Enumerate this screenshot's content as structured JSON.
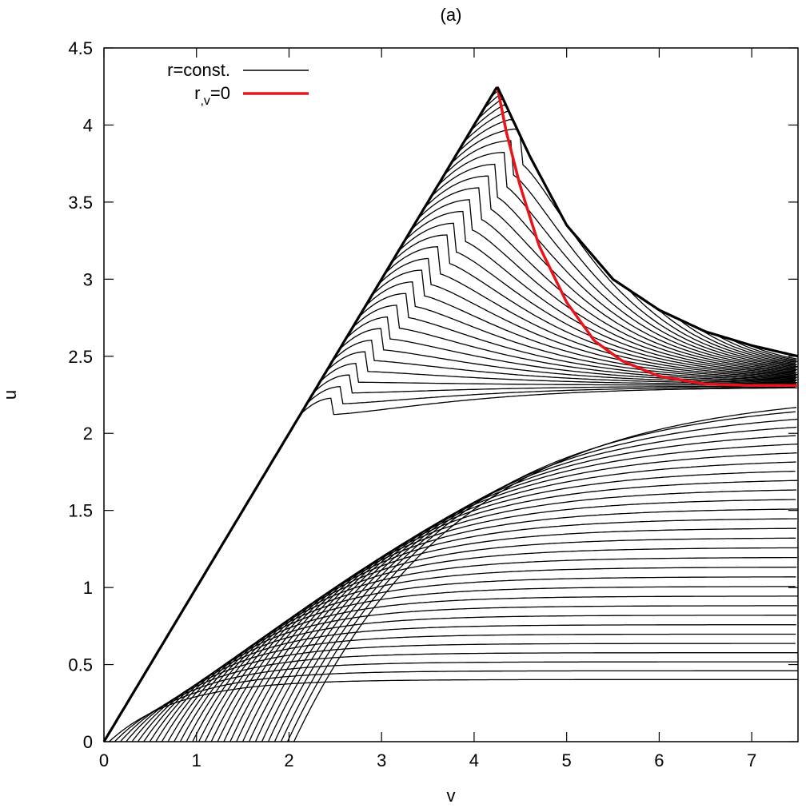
{
  "chart_data": {
    "type": "line",
    "title": "(a)",
    "xlabel": "v",
    "ylabel": "u",
    "xlim": [
      0,
      7.5
    ],
    "ylim": [
      0,
      4.5
    ],
    "x_ticks": [
      "0",
      "1",
      "2",
      "3",
      "4",
      "5",
      "6",
      "7"
    ],
    "y_ticks": [
      "0",
      "0.5",
      "1",
      "1.5",
      "2",
      "2.5",
      "3",
      "3.5",
      "4",
      "4.5"
    ],
    "grid": false,
    "legend_position": "top-left",
    "series": [
      {
        "name": "r=const.",
        "color": "#000000",
        "description_family": "contour lines of constant r",
        "boundary": {
          "x": [
            0,
            4.25,
            4.6,
            5.0,
            5.5,
            6.0,
            6.5,
            7.0,
            7.5
          ],
          "y": [
            0,
            4.25,
            3.8,
            3.35,
            3.0,
            2.8,
            2.66,
            2.57,
            2.5
          ]
        }
      },
      {
        "name": "r,v=0",
        "name_parts": {
          "base": "r",
          "sub": ",v",
          "rest": "=0"
        },
        "color": "#e8141b",
        "x": [
          4.25,
          4.35,
          4.5,
          4.7,
          5.0,
          5.3,
          5.6,
          6.0,
          6.5,
          7.0,
          7.5
        ],
        "y": [
          4.25,
          3.95,
          3.6,
          3.22,
          2.85,
          2.6,
          2.47,
          2.37,
          2.32,
          2.31,
          2.31
        ]
      }
    ]
  }
}
